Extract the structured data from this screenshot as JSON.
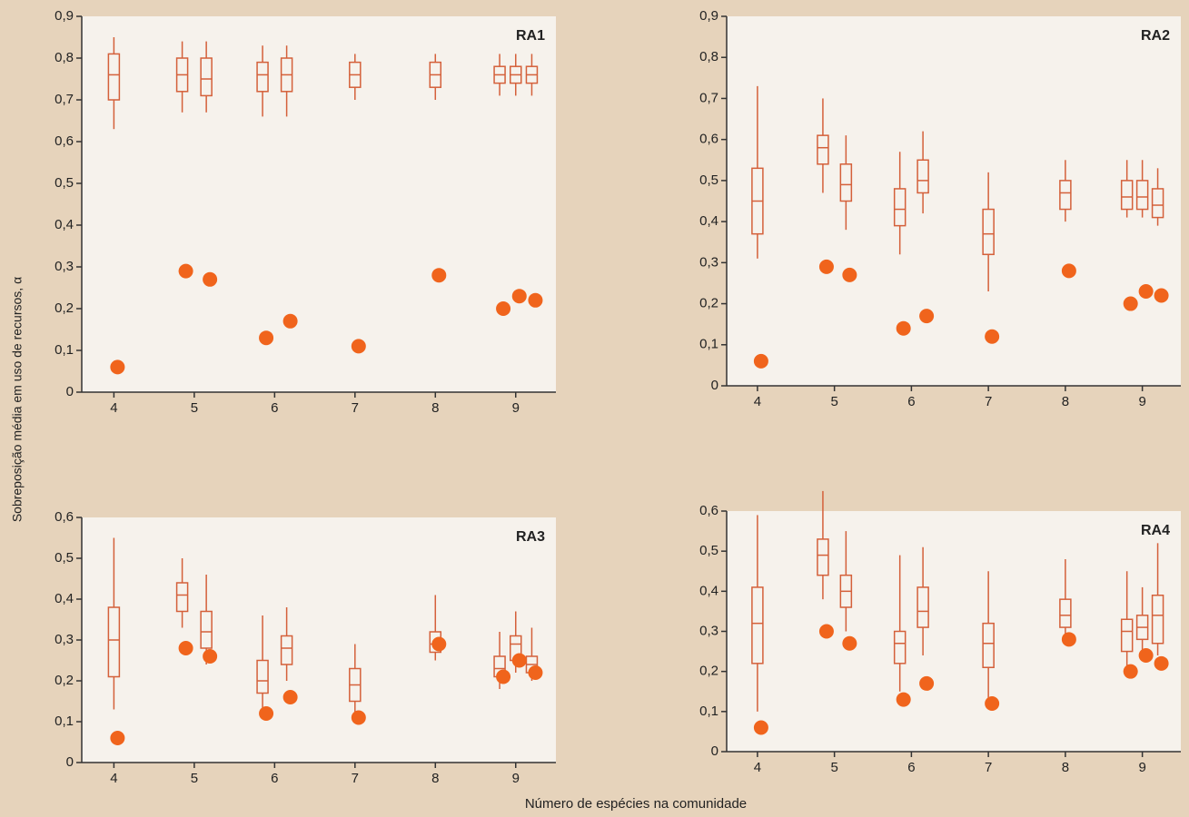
{
  "ylabel": "Sobreposição média em uso de recursos, α",
  "xlabel": "Número de espécies na comunidade",
  "chart_data": [
    {
      "type": "box",
      "title": "RA1",
      "x": [
        4,
        4.85,
        5.15,
        5.85,
        6.15,
        7,
        8,
        8.8,
        9,
        9.2
      ],
      "xlim": [
        3.6,
        9.5
      ],
      "xticks": [
        4,
        5,
        6,
        7,
        8,
        9
      ],
      "ylim": [
        0,
        0.9
      ],
      "yticks": [
        0,
        {
          "value": 0.1,
          "label": "0,1"
        },
        {
          "value": 0.2,
          "label": "0,2"
        },
        {
          "value": 0.3,
          "label": "0,3"
        },
        {
          "value": 0.4,
          "label": "0,4"
        },
        {
          "value": 0.5,
          "label": "0,5"
        },
        {
          "value": 0.6,
          "label": "0,6"
        },
        {
          "value": 0.7,
          "label": "0,7"
        },
        {
          "value": 0.8,
          "label": "0,8"
        },
        {
          "value": 0.9,
          "label": "0,9"
        }
      ],
      "boxes": {
        "color": "#d4603a",
        "whislo": [
          0.63,
          0.67,
          0.67,
          0.66,
          0.66,
          0.7,
          0.7,
          0.71,
          0.71,
          0.71
        ],
        "q1": [
          0.7,
          0.72,
          0.71,
          0.72,
          0.72,
          0.73,
          0.73,
          0.74,
          0.74,
          0.74
        ],
        "med": [
          0.76,
          0.76,
          0.75,
          0.76,
          0.76,
          0.76,
          0.76,
          0.76,
          0.76,
          0.76
        ],
        "q3": [
          0.81,
          0.8,
          0.8,
          0.79,
          0.8,
          0.79,
          0.79,
          0.78,
          0.78,
          0.78
        ],
        "whishi": [
          0.85,
          0.84,
          0.84,
          0.83,
          0.83,
          0.81,
          0.81,
          0.81,
          0.81,
          0.81
        ]
      },
      "points": {
        "color": "#f0641c",
        "values": [
          0.06,
          0.29,
          0.27,
          0.13,
          0.17,
          0.11,
          0.28,
          0.2,
          0.23,
          0.22
        ]
      }
    },
    {
      "type": "box",
      "title": "RA2",
      "x": [
        4,
        4.85,
        5.15,
        5.85,
        6.15,
        7,
        8,
        8.8,
        9,
        9.2
      ],
      "xlim": [
        3.6,
        9.5
      ],
      "xticks": [
        4,
        5,
        6,
        7,
        8,
        9
      ],
      "ylim": [
        0,
        0.9
      ],
      "yticks": [
        0,
        {
          "value": 0.1,
          "label": "0,1"
        },
        {
          "value": 0.2,
          "label": "0,2"
        },
        {
          "value": 0.3,
          "label": "0,3"
        },
        {
          "value": 0.4,
          "label": "0,4"
        },
        {
          "value": 0.5,
          "label": "0,5"
        },
        {
          "value": 0.6,
          "label": "0,6"
        },
        {
          "value": 0.7,
          "label": "0,7"
        },
        {
          "value": 0.8,
          "label": "0,8"
        },
        {
          "value": 0.9,
          "label": "0,9"
        }
      ],
      "boxes": {
        "color": "#d4603a",
        "whislo": [
          0.31,
          0.47,
          0.38,
          0.32,
          0.42,
          0.23,
          0.4,
          0.41,
          0.41,
          0.39
        ],
        "q1": [
          0.37,
          0.54,
          0.45,
          0.39,
          0.47,
          0.32,
          0.43,
          0.43,
          0.43,
          0.41
        ],
        "med": [
          0.45,
          0.58,
          0.49,
          0.43,
          0.5,
          0.37,
          0.47,
          0.46,
          0.46,
          0.44
        ],
        "q3": [
          0.53,
          0.61,
          0.54,
          0.48,
          0.55,
          0.43,
          0.5,
          0.5,
          0.5,
          0.48
        ],
        "whishi": [
          0.73,
          0.7,
          0.61,
          0.57,
          0.62,
          0.52,
          0.55,
          0.55,
          0.55,
          0.53
        ]
      },
      "points": {
        "color": "#f0641c",
        "values": [
          0.06,
          0.29,
          0.27,
          0.14,
          0.17,
          0.12,
          0.28,
          0.2,
          0.23,
          0.22
        ]
      }
    },
    {
      "type": "box",
      "title": "RA3",
      "x": [
        4,
        4.85,
        5.15,
        5.85,
        6.15,
        7,
        8,
        8.8,
        9,
        9.2
      ],
      "xlim": [
        3.6,
        9.5
      ],
      "xticks": [
        4,
        5,
        6,
        7,
        8,
        9
      ],
      "ylim": [
        0,
        0.6
      ],
      "yticks": [
        0,
        {
          "value": 0.1,
          "label": "0,1"
        },
        {
          "value": 0.2,
          "label": "0,2"
        },
        {
          "value": 0.3,
          "label": "0,3"
        },
        {
          "value": 0.4,
          "label": "0,4"
        },
        {
          "value": 0.5,
          "label": "0,5"
        },
        {
          "value": 0.6,
          "label": "0,6"
        }
      ],
      "boxes": {
        "color": "#d4603a",
        "whislo": [
          0.13,
          0.33,
          0.24,
          0.13,
          0.2,
          0.11,
          0.25,
          0.18,
          0.22,
          0.2
        ],
        "q1": [
          0.21,
          0.37,
          0.28,
          0.17,
          0.24,
          0.15,
          0.27,
          0.21,
          0.25,
          0.22
        ],
        "med": [
          0.3,
          0.41,
          0.32,
          0.2,
          0.28,
          0.19,
          0.29,
          0.23,
          0.29,
          0.24
        ],
        "q3": [
          0.38,
          0.44,
          0.37,
          0.25,
          0.31,
          0.23,
          0.32,
          0.26,
          0.31,
          0.26
        ],
        "whishi": [
          0.55,
          0.5,
          0.46,
          0.36,
          0.38,
          0.29,
          0.41,
          0.32,
          0.37,
          0.33
        ]
      },
      "points": {
        "color": "#f0641c",
        "values": [
          0.06,
          0.28,
          0.26,
          0.12,
          0.16,
          0.11,
          0.29,
          0.21,
          0.25,
          0.22
        ]
      }
    },
    {
      "type": "box",
      "title": "RA4",
      "x": [
        4,
        4.85,
        5.15,
        5.85,
        6.15,
        7,
        8,
        8.8,
        9,
        9.2
      ],
      "xlim": [
        3.6,
        9.5
      ],
      "xticks": [
        4,
        5,
        6,
        7,
        8,
        9
      ],
      "ylim": [
        0,
        0.6
      ],
      "yticks": [
        0,
        {
          "value": 0.1,
          "label": "0,1"
        },
        {
          "value": 0.2,
          "label": "0,2"
        },
        {
          "value": 0.3,
          "label": "0,3"
        },
        {
          "value": 0.4,
          "label": "0,4"
        },
        {
          "value": 0.5,
          "label": "0,5"
        },
        {
          "value": 0.6,
          "label": "0,6"
        }
      ],
      "boxes": {
        "color": "#d4603a",
        "whislo": [
          0.1,
          0.38,
          0.3,
          0.15,
          0.24,
          0.13,
          0.28,
          0.2,
          0.24,
          0.24
        ],
        "q1": [
          0.22,
          0.44,
          0.36,
          0.22,
          0.31,
          0.21,
          0.31,
          0.25,
          0.28,
          0.27
        ],
        "med": [
          0.32,
          0.49,
          0.4,
          0.27,
          0.35,
          0.27,
          0.34,
          0.3,
          0.31,
          0.34
        ],
        "q3": [
          0.41,
          0.53,
          0.44,
          0.3,
          0.41,
          0.32,
          0.38,
          0.33,
          0.34,
          0.39
        ],
        "whishi": [
          0.59,
          0.65,
          0.55,
          0.49,
          0.51,
          0.45,
          0.48,
          0.45,
          0.41,
          0.52
        ]
      },
      "points": {
        "color": "#f0641c",
        "values": [
          0.06,
          0.3,
          0.27,
          0.13,
          0.17,
          0.12,
          0.28,
          0.2,
          0.24,
          0.22
        ]
      }
    }
  ]
}
